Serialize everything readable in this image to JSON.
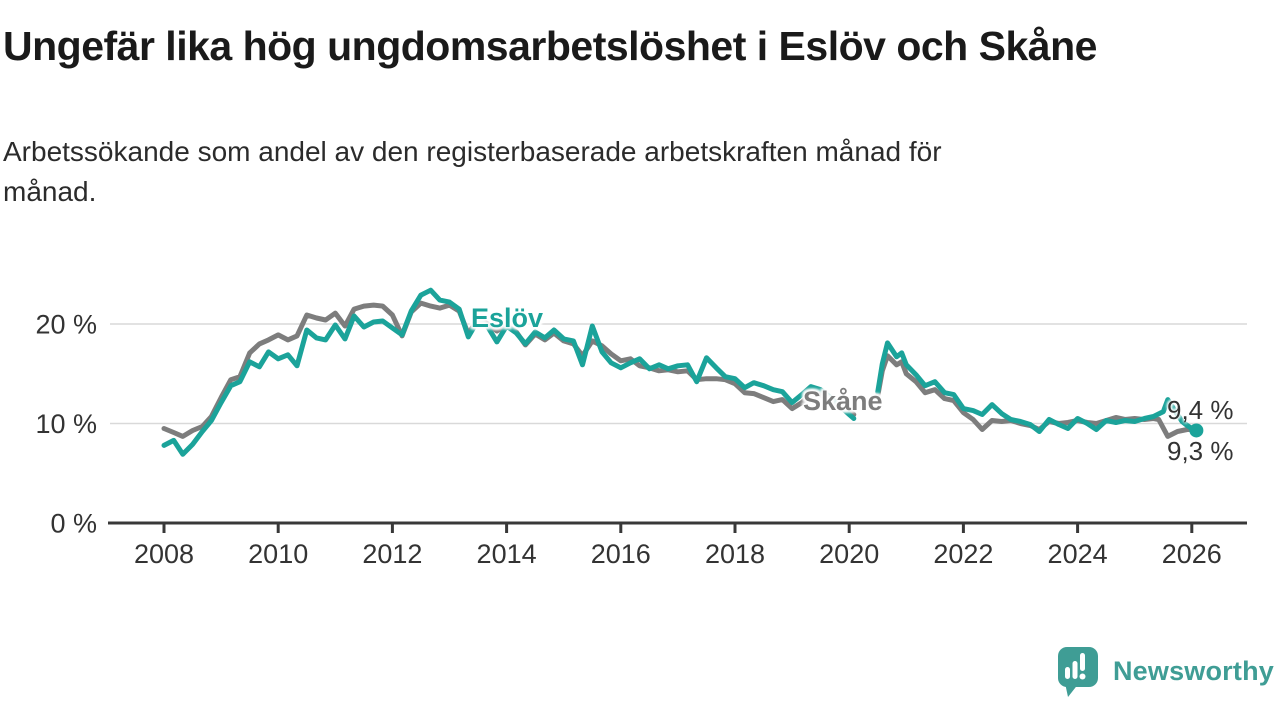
{
  "header": {
    "title": "Ungefär lika hög ungdomsarbetslöshet i Eslöv och Skåne",
    "subtitle_line1": "Arbetssökande som andel av den registerbaserade arbetskraften månad för",
    "subtitle_line2": "månad."
  },
  "chart_data": {
    "type": "line",
    "title": "Ungefär lika hög ungdomsarbetslöshet i Eslöv och Skåne",
    "subtitle": "Arbetssökande som andel av den registerbaserade arbetskraften månad för månad.",
    "ylabel": "",
    "xlabel": "",
    "unit": "%",
    "x_axis": {
      "ticks": [
        2008,
        2010,
        2012,
        2014,
        2016,
        2018,
        2020,
        2022,
        2024,
        2026
      ]
    },
    "y_axis": {
      "ticks": [
        0,
        10,
        20
      ],
      "tick_labels": [
        "0 %",
        "10 %",
        "20 %"
      ],
      "ylim": [
        0,
        25
      ]
    },
    "grid": true,
    "legend_position": "inline-labels",
    "data_gap_note": "lines interrupted around spring 2020 where the Skåne label sits",
    "series": [
      {
        "name": "Skåne",
        "color": "#7d7d7d",
        "final_value_label": "9,4 %",
        "end_dot": false,
        "segments": [
          [
            [
              2008.0,
              9.5
            ],
            [
              2008.17,
              9.1
            ],
            [
              2008.33,
              8.7
            ],
            [
              2008.5,
              9.3
            ],
            [
              2008.67,
              9.7
            ],
            [
              2008.83,
              10.7
            ],
            [
              2009.0,
              12.6
            ],
            [
              2009.17,
              14.4
            ],
            [
              2009.33,
              14.7
            ],
            [
              2009.5,
              17.1
            ],
            [
              2009.67,
              18.0
            ],
            [
              2009.83,
              18.4
            ],
            [
              2010.0,
              18.9
            ],
            [
              2010.17,
              18.4
            ],
            [
              2010.33,
              18.8
            ],
            [
              2010.5,
              20.9
            ],
            [
              2010.67,
              20.6
            ],
            [
              2010.83,
              20.4
            ],
            [
              2011.0,
              21.1
            ],
            [
              2011.17,
              19.8
            ],
            [
              2011.33,
              21.5
            ],
            [
              2011.5,
              21.8
            ],
            [
              2011.67,
              21.9
            ],
            [
              2011.83,
              21.8
            ],
            [
              2012.0,
              20.9
            ],
            [
              2012.17,
              18.8
            ],
            [
              2012.33,
              21.2
            ],
            [
              2012.5,
              22.1
            ],
            [
              2012.67,
              21.8
            ],
            [
              2012.83,
              21.6
            ],
            [
              2013.0,
              21.9
            ],
            [
              2013.17,
              21.3
            ],
            [
              2013.33,
              19.0
            ],
            [
              2013.5,
              20.6
            ],
            [
              2013.67,
              20.0
            ],
            [
              2013.83,
              19.3
            ],
            [
              2014.0,
              19.9
            ],
            [
              2014.17,
              19.2
            ],
            [
              2014.33,
              17.9
            ],
            [
              2014.5,
              19.0
            ],
            [
              2014.67,
              18.4
            ],
            [
              2014.83,
              19.1
            ],
            [
              2015.0,
              18.3
            ],
            [
              2015.17,
              18.0
            ],
            [
              2015.33,
              16.8
            ],
            [
              2015.5,
              18.3
            ],
            [
              2015.67,
              17.8
            ],
            [
              2015.83,
              17.0
            ],
            [
              2016.0,
              16.3
            ],
            [
              2016.17,
              16.5
            ],
            [
              2016.33,
              15.8
            ],
            [
              2016.5,
              15.6
            ],
            [
              2016.67,
              15.3
            ],
            [
              2016.83,
              15.4
            ],
            [
              2017.0,
              15.2
            ],
            [
              2017.17,
              15.3
            ],
            [
              2017.33,
              14.4
            ],
            [
              2017.5,
              14.5
            ],
            [
              2017.67,
              14.5
            ],
            [
              2017.83,
              14.4
            ],
            [
              2018.0,
              14.0
            ],
            [
              2018.17,
              13.1
            ],
            [
              2018.33,
              13.0
            ],
            [
              2018.5,
              12.6
            ],
            [
              2018.67,
              12.2
            ],
            [
              2018.83,
              12.4
            ],
            [
              2019.0,
              11.5
            ],
            [
              2019.17,
              12.1
            ],
            [
              2019.33,
              13.0
            ],
            [
              2019.5,
              12.9
            ],
            [
              2019.67,
              12.3
            ],
            [
              2019.83,
              11.6
            ],
            [
              2020.0,
              11.2
            ],
            [
              2020.08,
              10.9
            ]
          ],
          [
            [
              2020.5,
              12.8
            ],
            [
              2020.58,
              15.3
            ],
            [
              2020.67,
              16.8
            ],
            [
              2020.83,
              15.9
            ],
            [
              2020.92,
              16.2
            ],
            [
              2021.0,
              15.0
            ],
            [
              2021.17,
              14.2
            ],
            [
              2021.33,
              13.1
            ],
            [
              2021.5,
              13.4
            ],
            [
              2021.67,
              12.5
            ],
            [
              2021.83,
              12.3
            ],
            [
              2022.0,
              11.1
            ],
            [
              2022.17,
              10.4
            ],
            [
              2022.33,
              9.4
            ],
            [
              2022.5,
              10.3
            ],
            [
              2022.67,
              10.2
            ],
            [
              2022.83,
              10.3
            ],
            [
              2023.0,
              10.0
            ],
            [
              2023.17,
              9.8
            ],
            [
              2023.33,
              9.4
            ],
            [
              2023.5,
              10.2
            ],
            [
              2023.67,
              10.0
            ],
            [
              2023.83,
              10.1
            ],
            [
              2024.0,
              10.3
            ],
            [
              2024.17,
              10.1
            ],
            [
              2024.33,
              10.0
            ],
            [
              2024.5,
              10.3
            ],
            [
              2024.67,
              10.6
            ],
            [
              2024.83,
              10.4
            ],
            [
              2025.0,
              10.5
            ],
            [
              2025.17,
              10.4
            ],
            [
              2025.33,
              10.5
            ],
            [
              2025.42,
              10.4
            ],
            [
              2025.58,
              8.7
            ],
            [
              2025.75,
              9.2
            ],
            [
              2025.92,
              9.4
            ],
            [
              2026.0,
              9.4
            ]
          ]
        ]
      },
      {
        "name": "Eslöv",
        "color": "#1ba39a",
        "final_value_label": "9,3 %",
        "end_dot": true,
        "segments": [
          [
            [
              2008.0,
              7.8
            ],
            [
              2008.17,
              8.3
            ],
            [
              2008.33,
              6.9
            ],
            [
              2008.5,
              7.9
            ],
            [
              2008.67,
              9.2
            ],
            [
              2008.83,
              10.3
            ],
            [
              2009.0,
              12.1
            ],
            [
              2009.17,
              13.8
            ],
            [
              2009.33,
              14.2
            ],
            [
              2009.5,
              16.2
            ],
            [
              2009.67,
              15.7
            ],
            [
              2009.83,
              17.2
            ],
            [
              2010.0,
              16.5
            ],
            [
              2010.17,
              16.9
            ],
            [
              2010.33,
              15.8
            ],
            [
              2010.5,
              19.4
            ],
            [
              2010.67,
              18.6
            ],
            [
              2010.83,
              18.4
            ],
            [
              2011.0,
              19.9
            ],
            [
              2011.17,
              18.5
            ],
            [
              2011.33,
              20.8
            ],
            [
              2011.5,
              19.7
            ],
            [
              2011.67,
              20.2
            ],
            [
              2011.83,
              20.3
            ],
            [
              2012.0,
              19.6
            ],
            [
              2012.17,
              18.9
            ],
            [
              2012.33,
              21.3
            ],
            [
              2012.5,
              22.9
            ],
            [
              2012.67,
              23.4
            ],
            [
              2012.83,
              22.4
            ],
            [
              2013.0,
              22.2
            ],
            [
              2013.17,
              21.5
            ],
            [
              2013.33,
              18.7
            ],
            [
              2013.5,
              20.4
            ],
            [
              2013.67,
              19.7
            ],
            [
              2013.83,
              18.2
            ],
            [
              2014.0,
              19.8
            ],
            [
              2014.17,
              19.1
            ],
            [
              2014.33,
              18.0
            ],
            [
              2014.5,
              19.2
            ],
            [
              2014.67,
              18.6
            ],
            [
              2014.83,
              19.4
            ],
            [
              2015.0,
              18.5
            ],
            [
              2015.17,
              18.3
            ],
            [
              2015.33,
              15.9
            ],
            [
              2015.5,
              19.8
            ],
            [
              2015.67,
              17.2
            ],
            [
              2015.83,
              16.1
            ],
            [
              2016.0,
              15.6
            ],
            [
              2016.17,
              16.1
            ],
            [
              2016.33,
              16.5
            ],
            [
              2016.5,
              15.5
            ],
            [
              2016.67,
              15.9
            ],
            [
              2016.83,
              15.5
            ],
            [
              2017.0,
              15.8
            ],
            [
              2017.17,
              15.9
            ],
            [
              2017.33,
              14.2
            ],
            [
              2017.5,
              16.6
            ],
            [
              2017.67,
              15.6
            ],
            [
              2017.83,
              14.7
            ],
            [
              2018.0,
              14.5
            ],
            [
              2018.17,
              13.6
            ],
            [
              2018.33,
              14.1
            ],
            [
              2018.5,
              13.8
            ],
            [
              2018.67,
              13.4
            ],
            [
              2018.83,
              13.2
            ],
            [
              2019.0,
              12.1
            ],
            [
              2019.17,
              12.9
            ],
            [
              2019.33,
              13.7
            ],
            [
              2019.5,
              13.4
            ],
            [
              2019.67,
              12.6
            ],
            [
              2019.83,
              11.8
            ],
            [
              2020.0,
              10.9
            ],
            [
              2020.08,
              10.5
            ]
          ],
          [
            [
              2020.5,
              13.2
            ],
            [
              2020.58,
              16.0
            ],
            [
              2020.67,
              18.1
            ],
            [
              2020.83,
              16.7
            ],
            [
              2020.92,
              17.1
            ],
            [
              2021.0,
              15.9
            ],
            [
              2021.17,
              14.9
            ],
            [
              2021.33,
              13.8
            ],
            [
              2021.5,
              14.2
            ],
            [
              2021.67,
              13.1
            ],
            [
              2021.83,
              12.9
            ],
            [
              2022.0,
              11.5
            ],
            [
              2022.17,
              11.3
            ],
            [
              2022.33,
              10.9
            ],
            [
              2022.5,
              11.9
            ],
            [
              2022.67,
              11.0
            ],
            [
              2022.83,
              10.4
            ],
            [
              2023.0,
              10.2
            ],
            [
              2023.17,
              9.9
            ],
            [
              2023.33,
              9.2
            ],
            [
              2023.5,
              10.4
            ],
            [
              2023.67,
              9.9
            ],
            [
              2023.83,
              9.5
            ],
            [
              2024.0,
              10.5
            ],
            [
              2024.17,
              10.0
            ],
            [
              2024.33,
              9.4
            ],
            [
              2024.5,
              10.3
            ],
            [
              2024.67,
              10.1
            ],
            [
              2024.83,
              10.3
            ],
            [
              2025.0,
              10.2
            ],
            [
              2025.17,
              10.5
            ],
            [
              2025.33,
              10.7
            ],
            [
              2025.5,
              11.2
            ],
            [
              2025.58,
              12.4
            ],
            [
              2025.75,
              10.9
            ],
            [
              2025.83,
              10.2
            ],
            [
              2025.92,
              9.8
            ],
            [
              2026.0,
              9.5
            ],
            [
              2026.08,
              9.3
            ]
          ]
        ]
      }
    ]
  },
  "colors": {
    "eslov_teal": "#1ba39a",
    "skane_gray": "#7d7d7d",
    "grid": "#d9d9d9",
    "axis": "#383838",
    "text": "#333333",
    "brand_teal": "#3f9d95"
  },
  "footer": {
    "brand": "Newsworthy"
  }
}
